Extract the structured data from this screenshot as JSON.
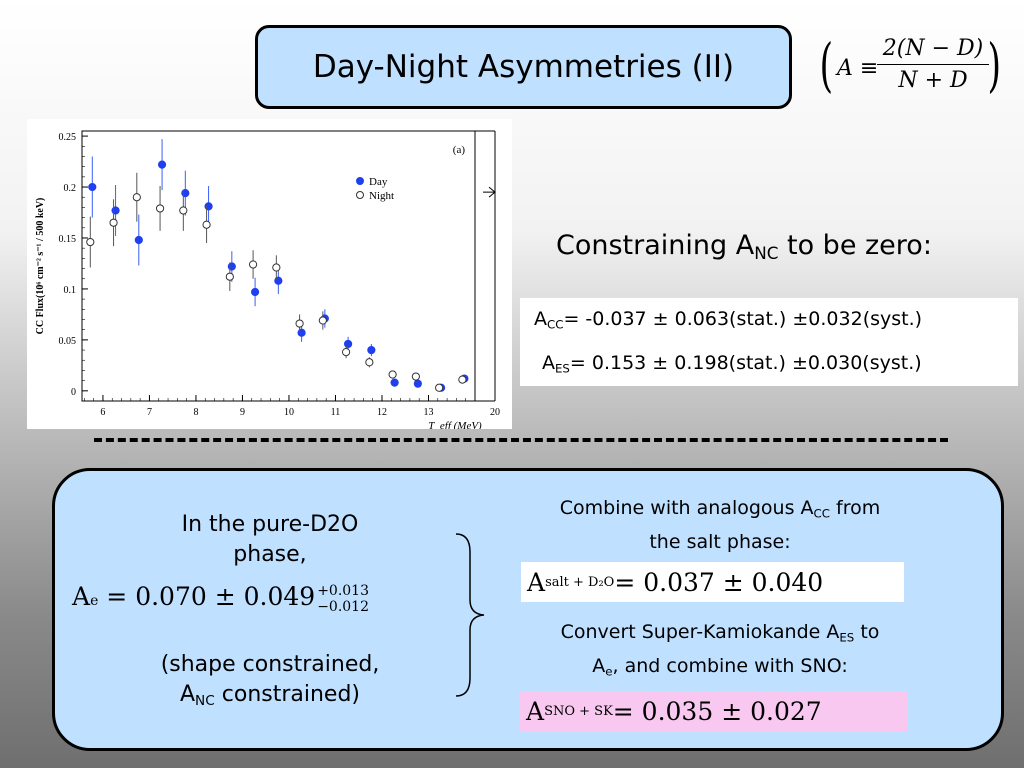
{
  "slide": {
    "title": "Day-Night Asymmetries (II)",
    "definition": {
      "lhs": "A ≡",
      "numerator": "2(N − D)",
      "denominator": "N + D"
    },
    "constrain_heading": "Constraining A",
    "constrain_heading_sub": "NC",
    "constrain_heading_tail": " to be zero:",
    "acc": {
      "label": "A",
      "sub": "CC",
      "value": "= -0.037 ± 0.063(stat.) ±0.032(syst.)"
    },
    "aes": {
      "label": "A",
      "sub": "ES",
      "value": "= 0.153 ± 0.198(stat.) ±0.030(syst.)"
    },
    "left": {
      "line1": "In the pure-D2O",
      "line2": "phase,",
      "eq_lhs": "A",
      "eq_lhs_sub": "e",
      "eq_body": " = 0.070 ± 0.049",
      "eq_sup": "+0.013",
      "eq_sub": "−0.012",
      "note_line1": "(shape constrained,",
      "note_line2_a": "A",
      "note_line2_sub": "NC",
      "note_line2_b": " constrained)"
    },
    "right": {
      "combine_a": "Combine with analogous A",
      "combine_sub": "CC",
      "combine_b": " from",
      "combine_line2": "the salt phase:",
      "eq1_lhs": "A",
      "eq1_sub": "salt + D₂O",
      "eq1_body": " = 0.037 ± 0.040",
      "convert_a": "Convert Super-Kamiokande A",
      "convert_sub": "ES",
      "convert_b": " to",
      "convert_line2_a": "A",
      "convert_line2_sub": "e",
      "convert_line2_b": ", and combine with SNO:",
      "eq2_lhs": "A",
      "eq2_sub": "SNO + SK",
      "eq2_body": " = 0.035 ± 0.027"
    }
  },
  "chart_data": {
    "type": "scatter",
    "panel_label": "(a)",
    "ylabel": "CC Flux(10⁶ cm⁻² s⁻¹ / 500 keV)",
    "xlabel": "T_eff (MeV)",
    "xticks": [
      "6",
      "7",
      "8",
      "9",
      "10",
      "11",
      "12",
      "13",
      "20"
    ],
    "yticks": [
      "0",
      "0.05",
      "0.1",
      "0.15",
      "0.2",
      "0.25"
    ],
    "ylim": [
      -0.01,
      0.255
    ],
    "legend": {
      "position": "top-right",
      "entries": [
        "Day",
        "Night"
      ]
    },
    "series": [
      {
        "name": "Day",
        "color": "#1f3ff0",
        "x": [
          5.75,
          6.25,
          6.75,
          7.25,
          7.75,
          8.25,
          8.75,
          9.25,
          9.75,
          10.25,
          10.75,
          11.25,
          11.75,
          12.25,
          12.75,
          13.25,
          13.75
        ],
        "y": [
          0.2,
          0.177,
          0.148,
          0.222,
          0.194,
          0.181,
          0.122,
          0.097,
          0.108,
          0.057,
          0.071,
          0.046,
          0.04,
          0.008,
          0.007,
          0.003,
          0.012
        ],
        "err": [
          0.03,
          0.025,
          0.025,
          0.025,
          0.022,
          0.02,
          0.015,
          0.014,
          0.013,
          0.009,
          0.009,
          0.007,
          0.006,
          0.002,
          0.002,
          0.001,
          0.002
        ]
      },
      {
        "name": "Night",
        "color": "#333333",
        "x": [
          5.75,
          6.25,
          6.75,
          7.25,
          7.75,
          8.25,
          8.75,
          9.25,
          9.75,
          10.25,
          10.75,
          11.25,
          11.75,
          12.25,
          12.75,
          13.25,
          13.75
        ],
        "y": [
          0.146,
          0.165,
          0.19,
          0.179,
          0.177,
          0.163,
          0.112,
          0.124,
          0.121,
          0.066,
          0.069,
          0.038,
          0.028,
          0.016,
          0.014,
          0.003,
          0.011
        ],
        "err": [
          0.025,
          0.023,
          0.024,
          0.022,
          0.02,
          0.018,
          0.014,
          0.014,
          0.012,
          0.009,
          0.009,
          0.006,
          0.005,
          0.003,
          0.003,
          0.001,
          0.002
        ]
      }
    ]
  }
}
